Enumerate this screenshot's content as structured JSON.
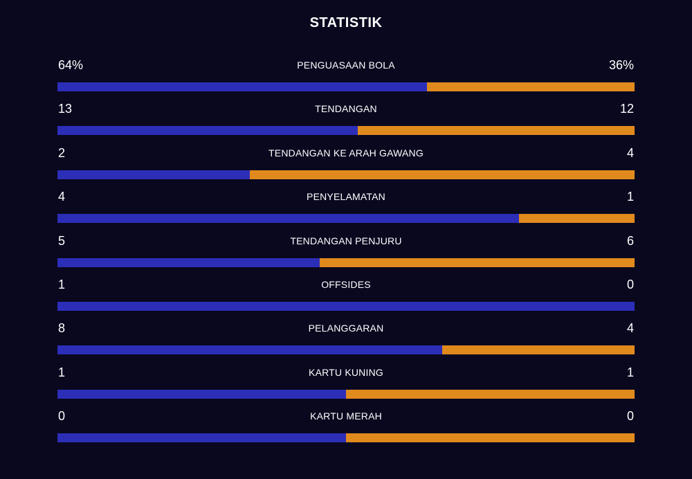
{
  "title": "STATISTIK",
  "colors": {
    "background": "#09081f",
    "home": "#2c2eb8",
    "away": "#e08a1e",
    "text": "#ffffff"
  },
  "stats": [
    {
      "label": "PENGUASAAN BOLA",
      "home": "64%",
      "away": "36%",
      "home_value": 64,
      "away_value": 36
    },
    {
      "label": "TENDANGAN",
      "home": "13",
      "away": "12",
      "home_value": 13,
      "away_value": 12
    },
    {
      "label": "TENDANGAN KE ARAH GAWANG",
      "home": "2",
      "away": "4",
      "home_value": 2,
      "away_value": 4
    },
    {
      "label": "PENYELAMATAN",
      "home": "4",
      "away": "1",
      "home_value": 4,
      "away_value": 1
    },
    {
      "label": "TENDANGAN PENJURU",
      "home": "5",
      "away": "6",
      "home_value": 5,
      "away_value": 6
    },
    {
      "label": "OFFSIDES",
      "home": "1",
      "away": "0",
      "home_value": 1,
      "away_value": 0
    },
    {
      "label": "PELANGGARAN",
      "home": "8",
      "away": "4",
      "home_value": 8,
      "away_value": 4
    },
    {
      "label": "KARTU KUNING",
      "home": "1",
      "away": "1",
      "home_value": 1,
      "away_value": 1
    },
    {
      "label": "KARTU MERAH",
      "home": "0",
      "away": "0",
      "home_value": 0,
      "away_value": 0
    }
  ]
}
